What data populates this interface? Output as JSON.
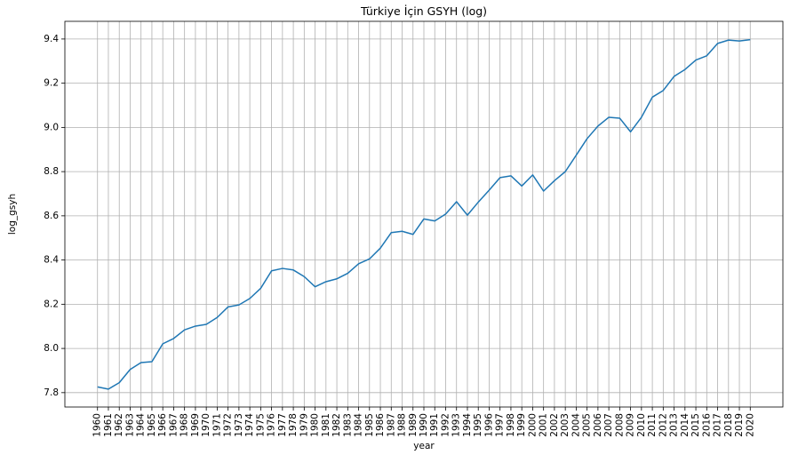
{
  "chart_data": {
    "type": "line",
    "title": "Türkiye İçin GSYH (log)",
    "xlabel": "year",
    "ylabel": "log_gsyh",
    "ylim": [
      7.735,
      9.48
    ],
    "yticks": [
      "7.8",
      "8.0",
      "8.2",
      "8.4",
      "8.6",
      "8.8",
      "9.0",
      "9.2",
      "9.4"
    ],
    "grid": true,
    "color": "#1f77b4",
    "x": [
      1960,
      1961,
      1962,
      1963,
      1964,
      1965,
      1966,
      1967,
      1968,
      1969,
      1970,
      1971,
      1972,
      1973,
      1974,
      1975,
      1976,
      1977,
      1978,
      1979,
      1980,
      1981,
      1982,
      1983,
      1984,
      1985,
      1986,
      1987,
      1988,
      1989,
      1990,
      1991,
      1992,
      1993,
      1994,
      1995,
      1996,
      1997,
      1998,
      1999,
      2000,
      2001,
      2002,
      2003,
      2004,
      2005,
      2006,
      2007,
      2008,
      2009,
      2010,
      2011,
      2012,
      2013,
      2014,
      2015,
      2016,
      2017,
      2018,
      2019,
      2020
    ],
    "y": [
      7.826,
      7.816,
      7.845,
      7.905,
      7.936,
      7.94,
      8.021,
      8.045,
      8.084,
      8.101,
      8.109,
      8.14,
      8.188,
      8.197,
      8.226,
      8.272,
      8.351,
      8.362,
      8.355,
      8.325,
      8.279,
      8.302,
      8.315,
      8.34,
      8.383,
      8.405,
      8.454,
      8.524,
      8.53,
      8.516,
      8.586,
      8.577,
      8.608,
      8.664,
      8.603,
      8.662,
      8.716,
      8.773,
      8.781,
      8.735,
      8.785,
      8.712,
      8.759,
      8.8,
      8.874,
      8.949,
      9.006,
      9.046,
      9.042,
      8.98,
      9.046,
      9.137,
      9.167,
      9.231,
      9.262,
      9.305,
      9.324,
      9.38,
      9.395,
      9.391,
      9.397
    ]
  }
}
